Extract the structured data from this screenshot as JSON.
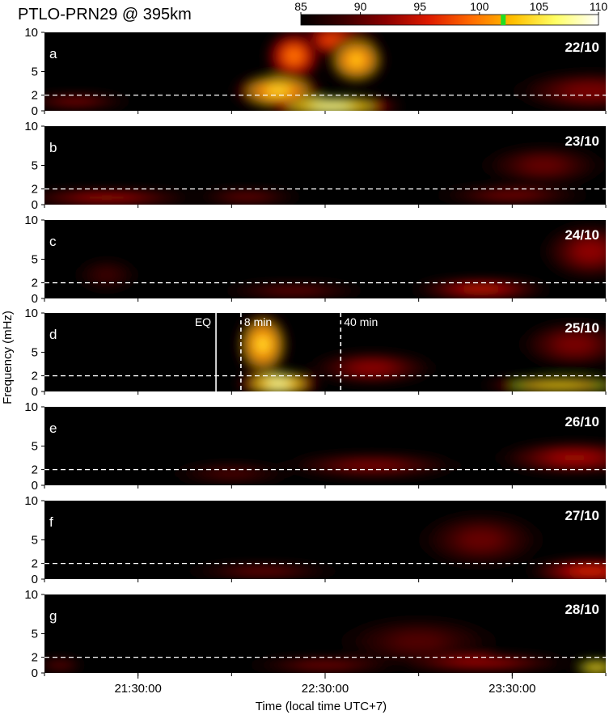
{
  "chart_data": {
    "type": "heatmap",
    "title": "PTLO-PRN29 @ 395km",
    "xlabel": "Time (local time UTC+7)",
    "ylabel": "Frequency (mHz)",
    "x_ticks": [
      "21:30:00",
      "22:30:00",
      "23:30:00"
    ],
    "x_range": [
      "21:00:00",
      "24:00:00"
    ],
    "y_ticks": [
      0,
      2,
      5,
      10
    ],
    "ylim": [
      0,
      10
    ],
    "colorbar": {
      "min": 85,
      "max": 110,
      "ticks": [
        85,
        90,
        95,
        100,
        105,
        110
      ],
      "colors": [
        "#000000",
        "#3a0000",
        "#8b0000",
        "#dd1a00",
        "#ff6a00",
        "#ffc000",
        "#ffff66",
        "#ffffff"
      ],
      "contour_color": "#22dd22",
      "contour_level": 102
    },
    "reference_line_frequency": 2,
    "panels": [
      {
        "letter": "a",
        "date": "22/10",
        "blobs": [
          {
            "t": "22:32",
            "f": 0.6,
            "dt_min": 22,
            "df": 1.2,
            "v": 110
          },
          {
            "t": "22:15",
            "f": 2.5,
            "dt_min": 14,
            "df": 2.2,
            "v": 106
          },
          {
            "t": "22:40",
            "f": 6.5,
            "dt_min": 9,
            "df": 3.0,
            "v": 105
          },
          {
            "t": "22:20",
            "f": 7.0,
            "dt_min": 9,
            "df": 3.2,
            "v": 101
          },
          {
            "t": "22:33",
            "f": 9.0,
            "dt_min": 14,
            "df": 2.0,
            "v": 99
          },
          {
            "t": "21:10",
            "f": 1.2,
            "dt_min": 18,
            "df": 0.8,
            "v": 93
          },
          {
            "t": "23:55",
            "f": 2.5,
            "dt_min": 25,
            "df": 2.5,
            "v": 92
          }
        ]
      },
      {
        "letter": "b",
        "date": "23/10",
        "blobs": [
          {
            "t": "21:20",
            "f": 0.9,
            "dt_min": 30,
            "df": 0.8,
            "v": 96
          },
          {
            "t": "22:05",
            "f": 1.0,
            "dt_min": 18,
            "df": 0.7,
            "v": 93
          },
          {
            "t": "23:30",
            "f": 1.2,
            "dt_min": 25,
            "df": 0.9,
            "v": 93
          },
          {
            "t": "23:40",
            "f": 5.0,
            "dt_min": 20,
            "df": 2.5,
            "v": 91
          }
        ]
      },
      {
        "letter": "c",
        "date": "24/10",
        "blobs": [
          {
            "t": "23:20",
            "f": 1.2,
            "dt_min": 22,
            "df": 1.2,
            "v": 96
          },
          {
            "t": "22:20",
            "f": 1.0,
            "dt_min": 25,
            "df": 0.8,
            "v": 92
          },
          {
            "t": "23:55",
            "f": 6.0,
            "dt_min": 15,
            "df": 3.5,
            "v": 93
          },
          {
            "t": "21:20",
            "f": 3.0,
            "dt_min": 10,
            "df": 2.0,
            "v": 89
          }
        ]
      },
      {
        "letter": "d",
        "date": "25/10",
        "event_lines": [
          {
            "label": "EQ",
            "time": "21:55",
            "style": "solid"
          },
          {
            "label": "8 min",
            "time": "22:03",
            "style": "dashed"
          },
          {
            "label": "40 min",
            "time": "22:35",
            "style": "dashed"
          }
        ],
        "blobs": [
          {
            "t": "22:15",
            "f": 1.0,
            "dt_min": 13,
            "df": 1.5,
            "v": 110
          },
          {
            "t": "22:10",
            "f": 6.0,
            "dt_min": 8,
            "df": 4.0,
            "v": 106
          },
          {
            "t": "23:45",
            "f": 0.8,
            "dt_min": 24,
            "df": 0.9,
            "v": 104
          },
          {
            "t": "22:45",
            "f": 3.0,
            "dt_min": 20,
            "df": 2.0,
            "v": 93
          },
          {
            "t": "23:50",
            "f": 6.0,
            "dt_min": 18,
            "df": 3.0,
            "v": 92
          }
        ]
      },
      {
        "letter": "e",
        "date": "26/10",
        "blobs": [
          {
            "t": "22:45",
            "f": 2.5,
            "dt_min": 30,
            "df": 1.5,
            "v": 92
          },
          {
            "t": "23:50",
            "f": 3.5,
            "dt_min": 25,
            "df": 2.0,
            "v": 94
          },
          {
            "t": "22:00",
            "f": 1.5,
            "dt_min": 20,
            "df": 1.2,
            "v": 90
          }
        ]
      },
      {
        "letter": "f",
        "date": "27/10",
        "blobs": [
          {
            "t": "23:55",
            "f": 1.0,
            "dt_min": 20,
            "df": 1.5,
            "v": 97
          },
          {
            "t": "22:10",
            "f": 1.0,
            "dt_min": 25,
            "df": 0.7,
            "v": 93
          },
          {
            "t": "23:20",
            "f": 5.0,
            "dt_min": 20,
            "df": 3.5,
            "v": 91
          }
        ]
      },
      {
        "letter": "g",
        "date": "28/10",
        "blobs": [
          {
            "t": "23:57",
            "f": 0.7,
            "dt_min": 7,
            "df": 0.9,
            "v": 106
          },
          {
            "t": "23:20",
            "f": 1.3,
            "dt_min": 30,
            "df": 0.9,
            "v": 95
          },
          {
            "t": "22:30",
            "f": 1.0,
            "dt_min": 25,
            "df": 0.8,
            "v": 93
          },
          {
            "t": "21:05",
            "f": 1.0,
            "dt_min": 8,
            "df": 0.7,
            "v": 92
          },
          {
            "t": "23:00",
            "f": 4.0,
            "dt_min": 25,
            "df": 3.0,
            "v": 90
          }
        ]
      }
    ]
  }
}
